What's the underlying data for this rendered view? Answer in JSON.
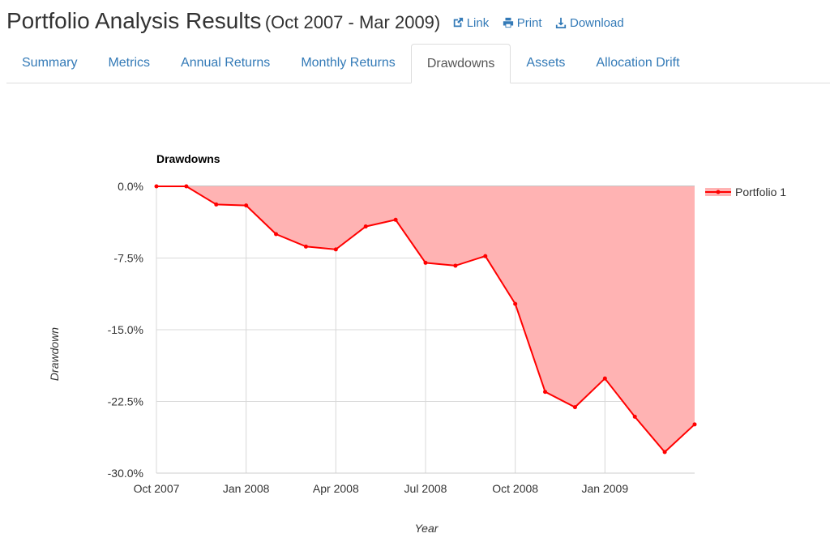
{
  "header": {
    "title": "Portfolio Analysis Results",
    "subtitle": "(Oct 2007 - Mar 2009)",
    "link_label": "Link",
    "print_label": "Print",
    "download_label": "Download"
  },
  "tabs": [
    {
      "label": "Summary"
    },
    {
      "label": "Metrics"
    },
    {
      "label": "Annual Returns"
    },
    {
      "label": "Monthly Returns"
    },
    {
      "label": "Drawdowns",
      "active": true
    },
    {
      "label": "Assets"
    },
    {
      "label": "Allocation Drift"
    }
  ],
  "colors": {
    "link": "#337ab7",
    "series_line": "#ff0000",
    "series_fill": "#ffb3b3"
  },
  "chart_data": {
    "type": "area",
    "title": "Drawdowns",
    "xlabel": "Year",
    "ylabel": "Drawdown",
    "ylim": [
      -30,
      0
    ],
    "yticks": [
      "0.0%",
      "-7.5%",
      "-15.0%",
      "-22.5%",
      "-30.0%"
    ],
    "ytick_values": [
      0,
      -7.5,
      -15,
      -22.5,
      -30
    ],
    "xticks": [
      "Oct 2007",
      "Jan 2008",
      "Apr 2008",
      "Jul 2008",
      "Oct 2008",
      "Jan 2009"
    ],
    "grid": true,
    "legend_position": "top-right",
    "x": [
      "Oct 2007",
      "Nov 2007",
      "Dec 2007",
      "Jan 2008",
      "Feb 2008",
      "Mar 2008",
      "Apr 2008",
      "May 2008",
      "Jun 2008",
      "Jul 2008",
      "Aug 2008",
      "Sep 2008",
      "Oct 2008",
      "Nov 2008",
      "Dec 2008",
      "Jan 2009",
      "Feb 2009",
      "Mar 2009",
      "Apr 2009"
    ],
    "series": [
      {
        "name": "Portfolio 1",
        "values": [
          0.0,
          0.0,
          -1.9,
          -2.0,
          -5.0,
          -6.3,
          -6.6,
          -4.2,
          -3.5,
          -8.0,
          -8.3,
          -7.3,
          -12.3,
          -21.5,
          -23.1,
          -20.1,
          -24.1,
          -27.8,
          -24.9
        ]
      }
    ]
  }
}
